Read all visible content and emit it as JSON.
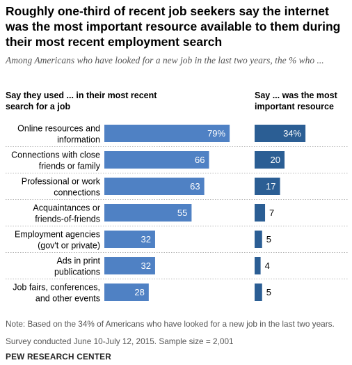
{
  "header": {
    "title": "Roughly one-third of recent job seekers say the internet was the most important resource available to them during their most recent employment search",
    "subtitle": "Among Americans who have looked for a new job in the last two years, the % who ...",
    "col_left": "Say they used ... in their most recent search for a job",
    "col_right": "Say ... was the most important resource"
  },
  "colors": {
    "used_bar": "#4f81c4",
    "important_bar": "#2b5e94",
    "separator": "#b4b4b4"
  },
  "chart_data": [
    {
      "type": "bar",
      "orientation": "horizontal",
      "title": "Say they used ... in their most recent search for a job",
      "categories": [
        "Online resources and information",
        "Connections with close friends or family",
        "Professional or work connections",
        "Acquaintances or friends-of-friends",
        "Employment agencies (gov't or private)",
        "Ads in print publications",
        "Job fairs, conferences, and other events"
      ],
      "category_lines": [
        [
          "Online resources and",
          "information"
        ],
        [
          "Connections with close",
          "friends or family"
        ],
        [
          "Professional or work",
          "connections"
        ],
        [
          "Acquaintances or",
          "friends-of-friends"
        ],
        [
          "Employment agencies",
          "(gov't or private)"
        ],
        [
          "Ads in print",
          "publications"
        ],
        [
          "Job fairs, conferences,",
          "and other events"
        ]
      ],
      "values": [
        79,
        66,
        63,
        55,
        32,
        32,
        28
      ],
      "labels": [
        "79%",
        "66",
        "63",
        "55",
        "32",
        "32",
        "28"
      ],
      "xlim": [
        0,
        100
      ]
    },
    {
      "type": "bar",
      "orientation": "horizontal",
      "title": "Say ... was the most important resource",
      "categories": [
        "Online resources and information",
        "Connections with close friends or family",
        "Professional or work connections",
        "Acquaintances or friends-of-friends",
        "Employment agencies (gov't or private)",
        "Ads in print publications",
        "Job fairs, conferences, and other events"
      ],
      "values": [
        34,
        20,
        17,
        7,
        5,
        4,
        5
      ],
      "labels": [
        "34%",
        "20",
        "17",
        "7",
        "5",
        "4",
        "5"
      ],
      "xlim": [
        0,
        100
      ]
    }
  ],
  "footer": {
    "note": "Note: Based on the 34% of Americans who have looked for a new job in the last two years.",
    "survey": "Survey conducted June 10-July 12, 2015. Sample size = 2,001",
    "source": "PEW RESEARCH CENTER"
  }
}
